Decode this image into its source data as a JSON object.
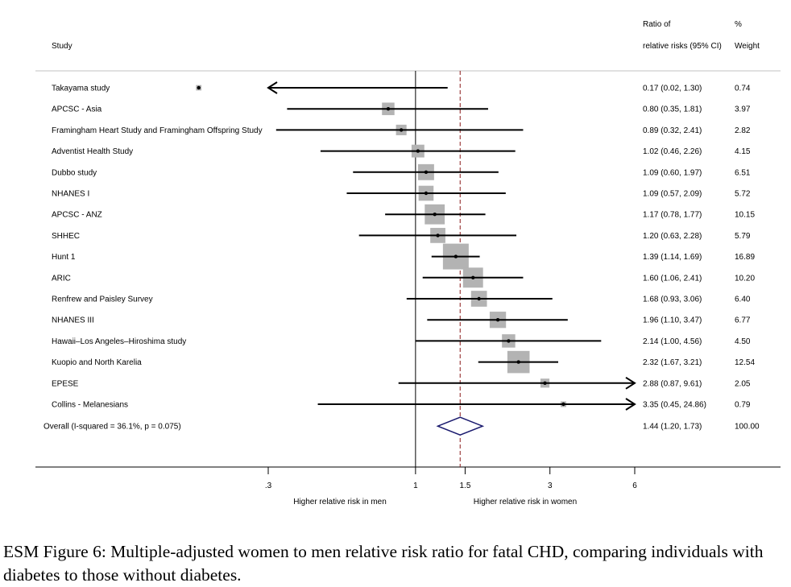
{
  "chart_data": {
    "type": "forest",
    "headers": {
      "study": "Study",
      "ratio_line1": "Ratio of",
      "ratio_line2": "relative risks (95% CI)",
      "weight_line1": "%",
      "weight_line2": "Weight"
    },
    "studies": [
      {
        "name": "Takayama study",
        "est": 0.17,
        "lo": 0.02,
        "hi": 1.3,
        "ci_text": "0.17 (0.02, 1.30)",
        "weight": 0.74,
        "weight_text": "0.74"
      },
      {
        "name": "APCSC - Asia",
        "est": 0.8,
        "lo": 0.35,
        "hi": 1.81,
        "ci_text": "0.80 (0.35, 1.81)",
        "weight": 3.97,
        "weight_text": "3.97"
      },
      {
        "name": "Framingham Heart Study and Framingham Offspring Study",
        "est": 0.89,
        "lo": 0.32,
        "hi": 2.41,
        "ci_text": "0.89 (0.32, 2.41)",
        "weight": 2.82,
        "weight_text": "2.82"
      },
      {
        "name": "Adventist Health Study",
        "est": 1.02,
        "lo": 0.46,
        "hi": 2.26,
        "ci_text": "1.02 (0.46, 2.26)",
        "weight": 4.15,
        "weight_text": "4.15"
      },
      {
        "name": "Dubbo study",
        "est": 1.09,
        "lo": 0.6,
        "hi": 1.97,
        "ci_text": "1.09 (0.60, 1.97)",
        "weight": 6.51,
        "weight_text": "6.51"
      },
      {
        "name": "NHANES I",
        "est": 1.09,
        "lo": 0.57,
        "hi": 2.09,
        "ci_text": "1.09 (0.57, 2.09)",
        "weight": 5.72,
        "weight_text": "5.72"
      },
      {
        "name": "APCSC - ANZ",
        "est": 1.17,
        "lo": 0.78,
        "hi": 1.77,
        "ci_text": "1.17 (0.78, 1.77)",
        "weight": 10.15,
        "weight_text": "10.15"
      },
      {
        "name": "SHHEC",
        "est": 1.2,
        "lo": 0.63,
        "hi": 2.28,
        "ci_text": "1.20 (0.63, 2.28)",
        "weight": 5.79,
        "weight_text": "5.79"
      },
      {
        "name": "Hunt 1",
        "est": 1.39,
        "lo": 1.14,
        "hi": 1.69,
        "ci_text": "1.39 (1.14, 1.69)",
        "weight": 16.89,
        "weight_text": "16.89"
      },
      {
        "name": "ARIC",
        "est": 1.6,
        "lo": 1.06,
        "hi": 2.41,
        "ci_text": "1.60 (1.06, 2.41)",
        "weight": 10.2,
        "weight_text": "10.20"
      },
      {
        "name": "Renfrew and Paisley Survey",
        "est": 1.68,
        "lo": 0.93,
        "hi": 3.06,
        "ci_text": "1.68 (0.93, 3.06)",
        "weight": 6.4,
        "weight_text": "6.40"
      },
      {
        "name": "NHANES III",
        "est": 1.96,
        "lo": 1.1,
        "hi": 3.47,
        "ci_text": "1.96 (1.10, 3.47)",
        "weight": 6.77,
        "weight_text": "6.77"
      },
      {
        "name": "Hawaii–Los Angeles–Hiroshima study",
        "est": 2.14,
        "lo": 1.0,
        "hi": 4.56,
        "ci_text": "2.14 (1.00, 4.56)",
        "weight": 4.5,
        "weight_text": "4.50"
      },
      {
        "name": "Kuopio and North Karelia",
        "est": 2.32,
        "lo": 1.67,
        "hi": 3.21,
        "ci_text": "2.32 (1.67, 3.21)",
        "weight": 12.54,
        "weight_text": "12.54"
      },
      {
        "name": "EPESE",
        "est": 2.88,
        "lo": 0.87,
        "hi": 9.61,
        "ci_text": "2.88 (0.87, 9.61)",
        "weight": 2.05,
        "weight_text": "2.05"
      },
      {
        "name": "Collins - Melanesians",
        "est": 3.35,
        "lo": 0.45,
        "hi": 24.86,
        "ci_text": "3.35 (0.45, 24.86)",
        "weight": 0.79,
        "weight_text": "0.79"
      }
    ],
    "overall": {
      "label": "Overall  (I-squared = 36.1%, p = 0.075)",
      "est": 1.44,
      "lo": 1.2,
      "hi": 1.73,
      "ci_text": "1.44 (1.20, 1.73)",
      "weight_text": "100.00"
    },
    "x_scale": "log",
    "xlim": [
      0.3,
      6
    ],
    "x_ticks": [
      {
        "value": 0.3,
        "label": ".3"
      },
      {
        "value": 1,
        "label": "1"
      },
      {
        "value": 1.5,
        "label": "1.5"
      },
      {
        "value": 3,
        "label": "3"
      },
      {
        "value": 6,
        "label": "6"
      }
    ],
    "null_line": 1,
    "xlabel_left": "Higher relative risk in men",
    "xlabel_right": "Higher relative risk in women",
    "colors": {
      "box": "#b3b3b3",
      "line": "#000000",
      "diamond": "#1a1a6e",
      "dashed": "#8b1a1a",
      "rule": "#c0c0c0"
    }
  },
  "caption": "ESM Figure 6: Multiple-adjusted women to men relative risk ratio for fatal CHD, comparing individuals with diabetes to those without diabetes."
}
